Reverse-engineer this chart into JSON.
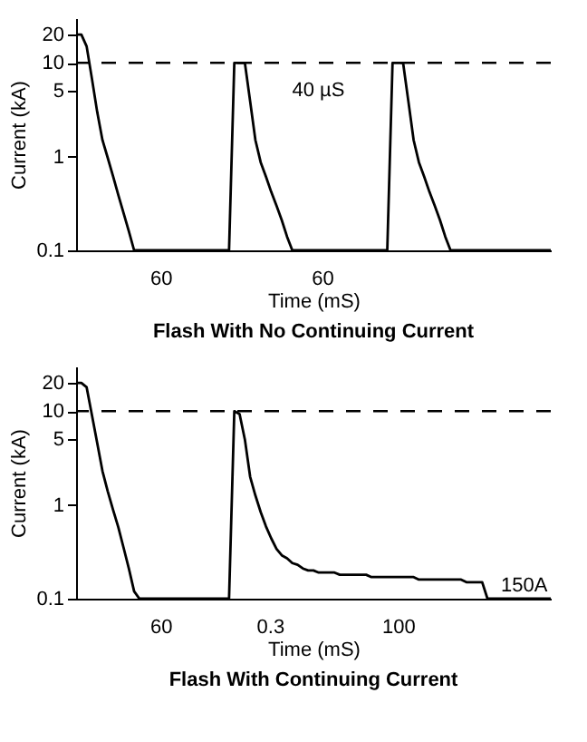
{
  "chart_data": [
    {
      "type": "line",
      "title": "Flash With No Continuing Current",
      "xlabel": "Time (mS)",
      "ylabel": "Current (kA)",
      "categories": [
        null,
        null,
        null,
        null,
        null,
        null,
        null,
        null,
        null,
        null,
        null,
        null,
        null,
        null,
        null,
        null,
        null,
        null,
        null,
        null,
        null,
        null,
        null,
        null,
        null,
        null,
        null,
        null,
        null,
        null,
        null,
        null,
        null,
        null,
        null,
        null,
        null,
        null,
        null,
        null,
        null,
        null,
        null,
        null,
        null,
        null,
        null,
        null,
        null,
        null,
        null,
        null,
        null,
        null,
        null,
        null,
        null,
        null,
        null,
        null,
        null,
        null,
        null,
        null,
        null,
        null,
        null,
        null,
        null,
        null,
        null,
        null,
        null,
        null,
        null,
        null,
        null,
        null,
        null,
        null,
        null,
        null,
        null,
        null,
        null,
        null,
        null,
        null,
        null,
        null,
        null
      ],
      "series": [
        {
          "color": "#000000",
          "values": [
            20,
            20,
            15,
            6.8,
            3.0,
            1.5,
            0.97,
            0.62,
            0.39,
            0.25,
            0.16,
            0.1,
            0.1,
            0.1,
            0.1,
            0.1,
            0.1,
            0.1,
            0.1,
            0.1,
            0.1,
            0.1,
            0.1,
            0.1,
            0.1,
            0.1,
            0.1,
            0.1,
            0.1,
            0.1,
            10,
            10,
            10,
            3.9,
            1.5,
            0.87,
            0.61,
            0.42,
            0.3,
            0.21,
            0.14,
            0.1,
            0.1,
            0.1,
            0.1,
            0.1,
            0.1,
            0.1,
            0.1,
            0.1,
            0.1,
            0.1,
            0.1,
            0.1,
            0.1,
            0.1,
            0.1,
            0.1,
            0.1,
            0.1,
            10,
            10,
            10,
            3.9,
            1.5,
            0.87,
            0.61,
            0.42,
            0.3,
            0.21,
            0.14,
            0.1,
            0.1,
            0.1,
            0.1,
            0.1,
            0.1,
            0.1,
            0.1,
            0.1,
            0.1,
            0.1,
            0.1,
            0.1,
            0.1,
            0.1,
            0.1,
            0.1,
            0.1,
            0.1,
            0.1
          ]
        }
      ],
      "ylim": [
        0.1,
        30
      ],
      "yticks": [
        0.1,
        1,
        5,
        10,
        20
      ],
      "log": "y",
      "tick_labels": "y",
      "ref_lines": [
        {
          "axis": "y",
          "value": 10,
          "line_style": "dashed",
          "color": "#000000"
        }
      ],
      "annotations": [
        "60",
        "60",
        "40 µS"
      ]
    },
    {
      "type": "line",
      "title": "Flash With Continuing Current",
      "xlabel": "Time (mS)",
      "ylabel": "Current (kA)",
      "categories": [
        null,
        null,
        null,
        null,
        null,
        null,
        null,
        null,
        null,
        null,
        null,
        null,
        null,
        null,
        null,
        null,
        null,
        null,
        null,
        null,
        null,
        null,
        null,
        null,
        null,
        null,
        null,
        null,
        null,
        null,
        null,
        null,
        null,
        null,
        null,
        null,
        null,
        null,
        null,
        null,
        null,
        null,
        null,
        null,
        null,
        null,
        null,
        null,
        null,
        null,
        null,
        null,
        null,
        null,
        null,
        null,
        null,
        null,
        null,
        null,
        null,
        null,
        null,
        null,
        null,
        null,
        null,
        null,
        null,
        null,
        null,
        null,
        null,
        null,
        null,
        null,
        null,
        null,
        null,
        null,
        null,
        null,
        null,
        null,
        null,
        null,
        null,
        null,
        null,
        null,
        null
      ],
      "series": [
        {
          "color": "#000000",
          "values": [
            20,
            20,
            18,
            9.1,
            4.6,
            2.3,
            1.4,
            0.89,
            0.58,
            0.35,
            0.21,
            0.12,
            0.1,
            0.1,
            0.1,
            0.1,
            0.1,
            0.1,
            0.1,
            0.1,
            0.1,
            0.1,
            0.1,
            0.1,
            0.1,
            0.1,
            0.1,
            0.1,
            0.1,
            0.1,
            10,
            9.3,
            5.0,
            2,
            1.26,
            0.84,
            0.59,
            0.44,
            0.34,
            0.29,
            0.27,
            0.24,
            0.23,
            0.21,
            0.2,
            0.2,
            0.19,
            0.19,
            0.19,
            0.19,
            0.18,
            0.18,
            0.18,
            0.18,
            0.18,
            0.18,
            0.17,
            0.17,
            0.17,
            0.17,
            0.17,
            0.17,
            0.17,
            0.17,
            0.17,
            0.16,
            0.16,
            0.16,
            0.16,
            0.16,
            0.16,
            0.16,
            0.16,
            0.16,
            0.15,
            0.15,
            0.15,
            0.15,
            0.1,
            0.1,
            0.1,
            0.1,
            0.1,
            0.1,
            0.1,
            0.1,
            0.1,
            0.1,
            0.1,
            0.1,
            0.1
          ]
        }
      ],
      "ylim": [
        0.1,
        30
      ],
      "yticks": [
        0.1,
        1,
        5,
        10,
        20
      ],
      "log": "y",
      "tick_labels": "y",
      "ref_lines": [
        {
          "axis": "y",
          "value": 10,
          "line_style": "dashed",
          "color": "#000000"
        }
      ],
      "annotations": [
        "60",
        "0.3",
        "100",
        "150A"
      ]
    }
  ]
}
